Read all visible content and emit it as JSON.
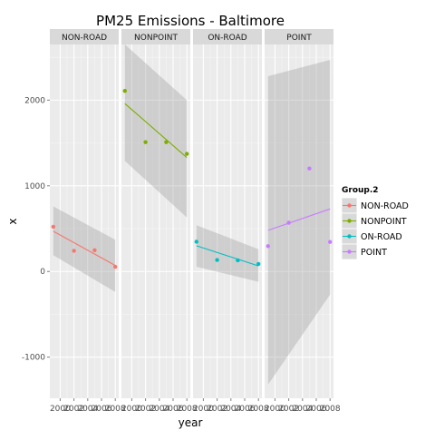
{
  "chart_data": {
    "type": "scatter",
    "title": "PM25 Emissions - Baltimore",
    "xlabel": "year",
    "ylabel": "x",
    "facets": [
      "NON-ROAD",
      "NONPOINT",
      "ON-ROAD",
      "POINT"
    ],
    "x_ticks": [
      2000,
      2002,
      2004,
      2006,
      2008
    ],
    "x_tick_labels": [
      "2000",
      "2002",
      "2004",
      "2006",
      "2008"
    ],
    "y_ticks": [
      -1000,
      0,
      1000,
      2000
    ],
    "y_tick_labels": [
      "-1000",
      "0",
      "1000",
      "2000"
    ],
    "xlim": [
      1998.5,
      2008.5
    ],
    "ylim": [
      -1480,
      2650
    ],
    "grid": true,
    "smooth": "lm",
    "legend": {
      "title": "Group.2",
      "position": "right"
    },
    "series": [
      {
        "name": "NON-ROAD",
        "color": "#F8766D",
        "x": [
          1999,
          2002,
          2005,
          2008
        ],
        "y": [
          522,
          241,
          248,
          55
        ],
        "fit": {
          "x": [
            1999,
            2008
          ],
          "y": [
            470,
            70
          ]
        },
        "ribbon": {
          "lower": [
            190,
            -240
          ],
          "upper": [
            760,
            370
          ]
        }
      },
      {
        "name": "NONPOINT",
        "color": "#7CAE00",
        "x": [
          1999,
          2002,
          2005,
          2008
        ],
        "y": [
          2108,
          1510,
          1510,
          1373
        ],
        "fit": {
          "x": [
            1999,
            2008
          ],
          "y": [
            1960,
            1330
          ]
        },
        "ribbon": {
          "lower": [
            1290,
            630
          ],
          "upper": [
            2650,
            2000
          ]
        }
      },
      {
        "name": "ON-ROAD",
        "color": "#00BFC4",
        "x": [
          1999,
          2002,
          2005,
          2008
        ],
        "y": [
          347,
          134,
          130,
          88
        ],
        "fit": {
          "x": [
            1999,
            2008
          ],
          "y": [
            300,
            65
          ]
        },
        "ribbon": {
          "lower": [
            55,
            -120
          ],
          "upper": [
            540,
            260
          ]
        }
      },
      {
        "name": "POINT",
        "color": "#C77CFF",
        "x": [
          1999,
          2002,
          2005,
          2008
        ],
        "y": [
          296,
          569,
          1202,
          345
        ],
        "fit": {
          "x": [
            1999,
            2008
          ],
          "y": [
            480,
            730
          ]
        },
        "ribbon": {
          "lower": [
            -1320,
            -270
          ],
          "upper": [
            2280,
            2470
          ]
        }
      }
    ]
  }
}
